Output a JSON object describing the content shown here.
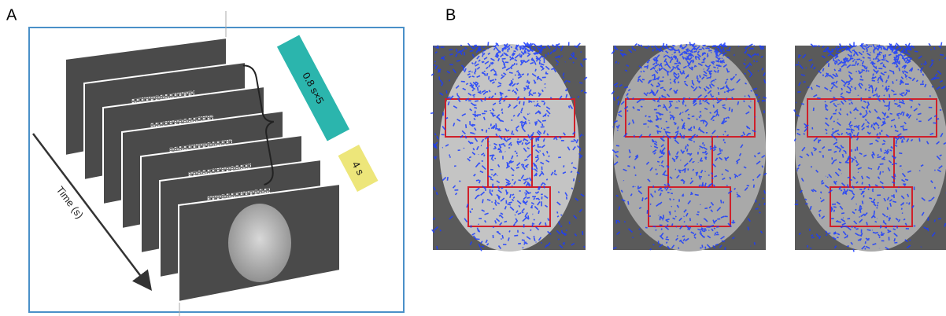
{
  "panels": [
    {
      "label": "A",
      "annotations": {
        "noise_duration": "0.8 s×5",
        "face_duration": "4 s",
        "time_axis": "Time (s)"
      }
    },
    {
      "label": "B"
    }
  ]
}
